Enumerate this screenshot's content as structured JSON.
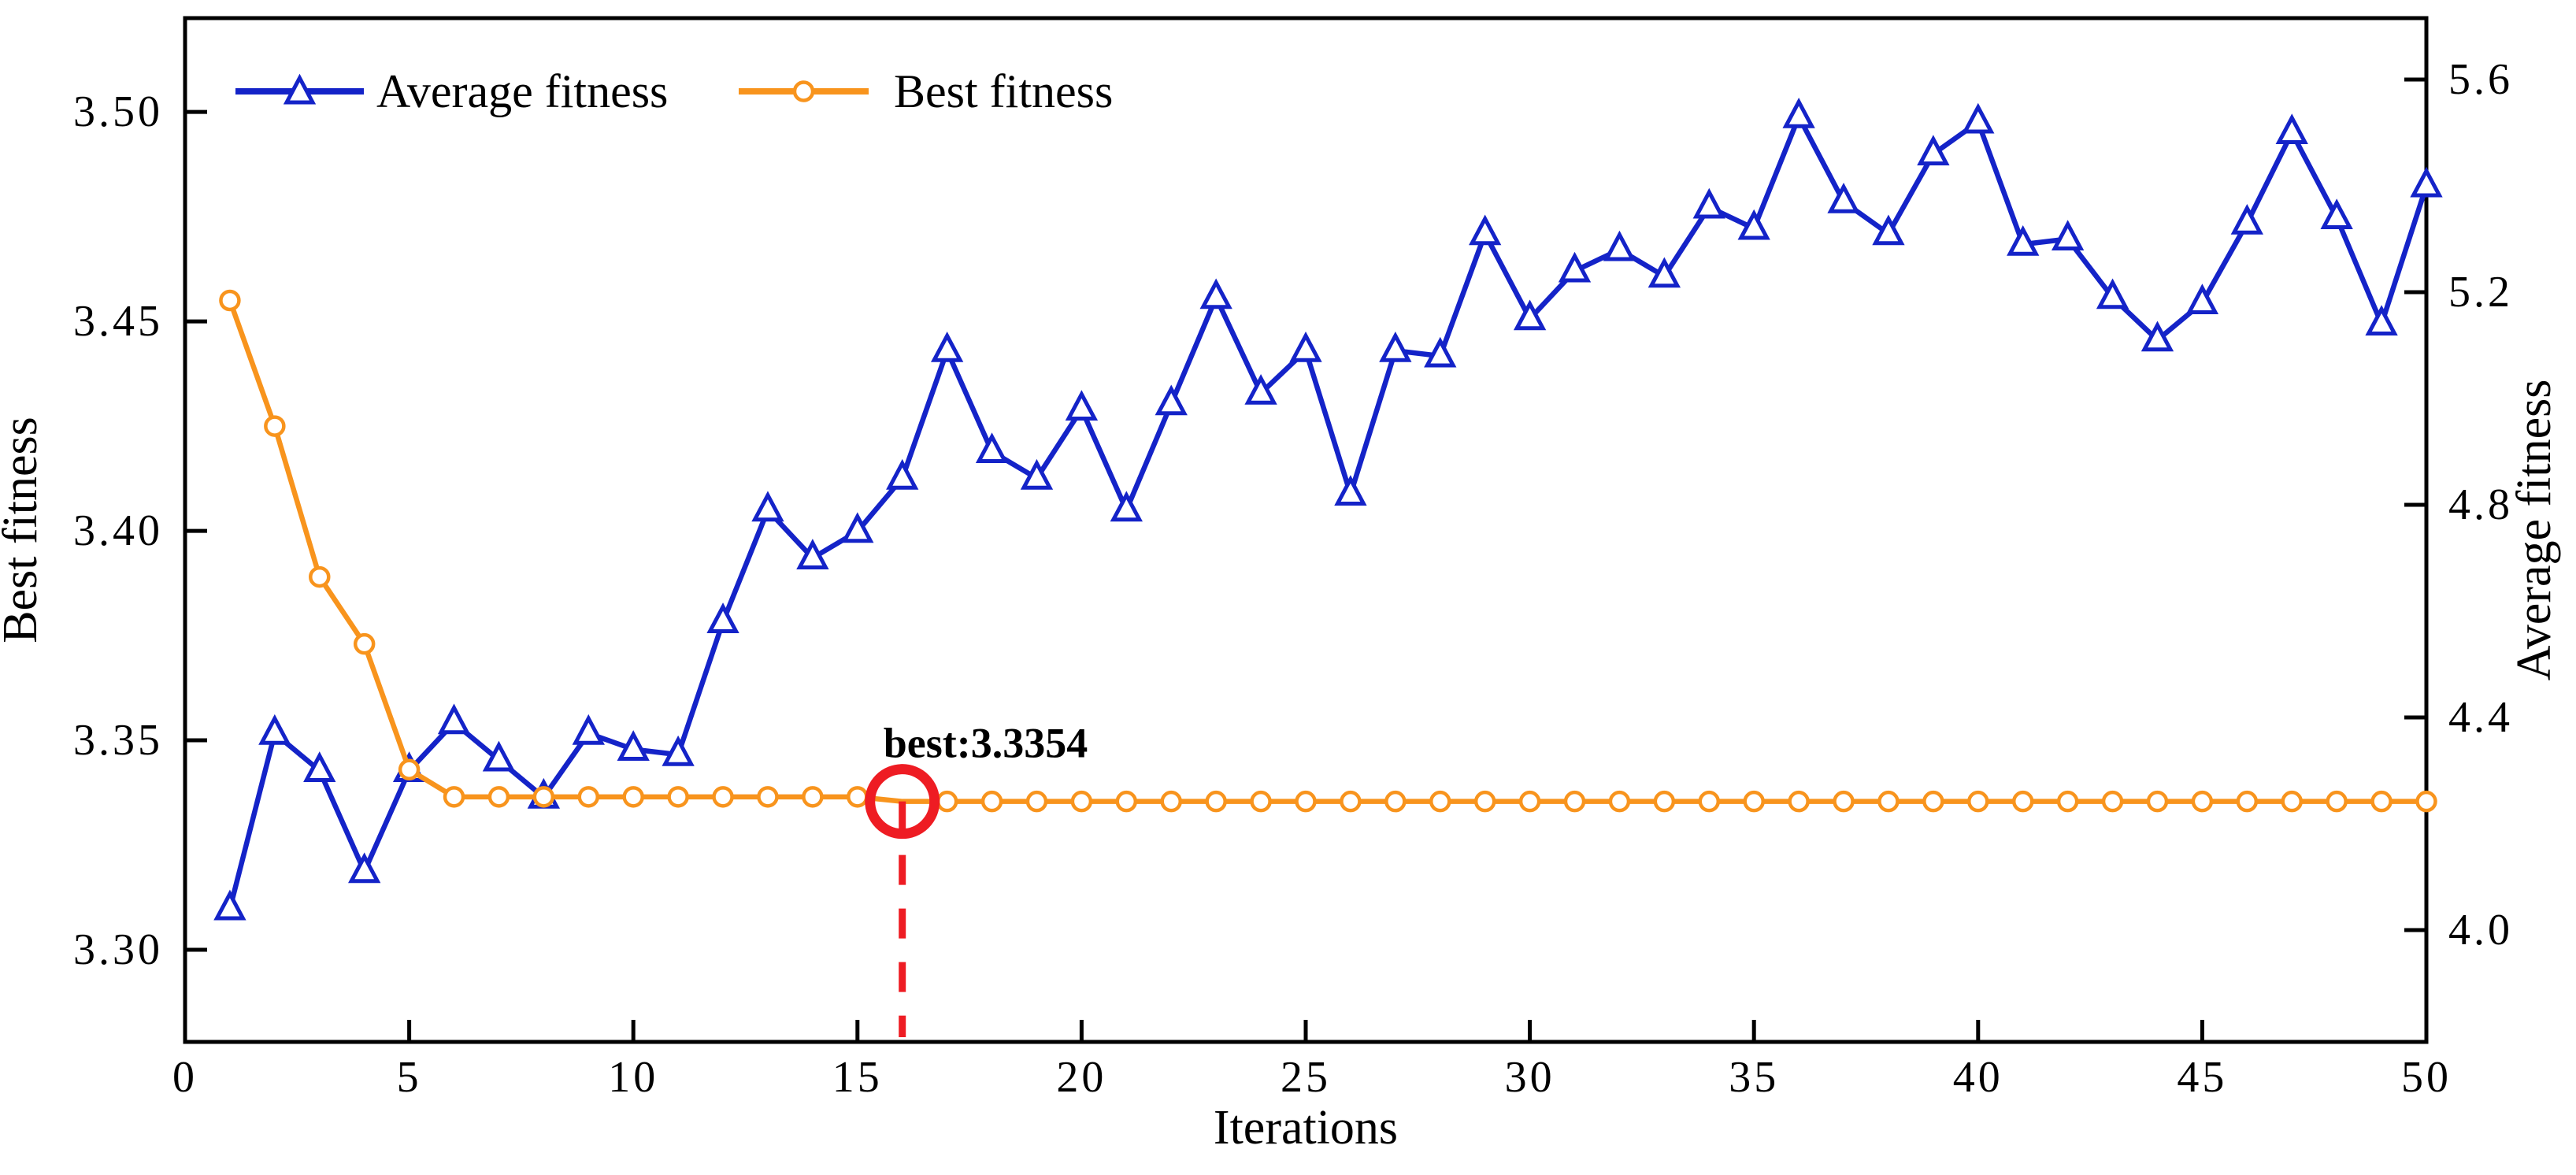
{
  "figure": {
    "background": "#ffffff",
    "axis_color": "#000000"
  },
  "chart_data": {
    "type": "line",
    "title": "",
    "xlabel": "Iterations",
    "ylabel_left": "Best fitness",
    "ylabel_right": "Average fitness",
    "grid": false,
    "legend_position": "top-left-inside",
    "xlim": [
      0,
      50
    ],
    "xticks": [
      0,
      5,
      10,
      15,
      20,
      25,
      30,
      35,
      40,
      45,
      50
    ],
    "xtick_labels": [
      "0",
      "5",
      "10",
      "15",
      "20",
      "25",
      "30",
      "35",
      "40",
      "45",
      "50"
    ],
    "left_ylim": [
      3.278,
      3.5224
    ],
    "left_yticks": [
      3.3,
      3.35,
      3.4,
      3.45,
      3.5
    ],
    "left_ytick_labels": [
      "3.30",
      "3.35",
      "3.40",
      "3.45",
      "3.50"
    ],
    "right_ylim": [
      3.7896,
      5.7156
    ],
    "right_yticks": [
      4.0,
      4.4,
      4.8,
      5.2,
      5.6
    ],
    "right_ytick_labels": [
      "4.0",
      "4.4",
      "4.8",
      "5.2",
      "5.6"
    ],
    "x": [
      1,
      2,
      3,
      4,
      5,
      6,
      7,
      8,
      9,
      10,
      11,
      12,
      13,
      14,
      15,
      16,
      17,
      18,
      19,
      20,
      21,
      22,
      23,
      24,
      25,
      26,
      27,
      28,
      29,
      30,
      31,
      32,
      33,
      34,
      35,
      36,
      37,
      38,
      39,
      40,
      41,
      42,
      43,
      44,
      45,
      46,
      47,
      48,
      49,
      50
    ],
    "series": [
      {
        "name": "Average fitness",
        "axis": "right",
        "color": "#1423c8",
        "marker": "triangle",
        "values": [
          4.04,
          4.37,
          4.3,
          4.11,
          4.3,
          4.39,
          4.32,
          4.25,
          4.37,
          4.34,
          4.33,
          4.58,
          4.79,
          4.7,
          4.75,
          4.85,
          5.09,
          4.9,
          4.85,
          4.98,
          4.79,
          4.99,
          5.19,
          5.01,
          5.09,
          4.82,
          5.09,
          5.08,
          5.31,
          5.15,
          5.24,
          5.28,
          5.23,
          5.36,
          5.32,
          5.53,
          5.37,
          5.31,
          5.46,
          5.52,
          5.29,
          5.3,
          5.19,
          5.11,
          5.18,
          5.33,
          5.5,
          5.34,
          5.14,
          5.4
        ]
      },
      {
        "name": "Best fitness",
        "axis": "left",
        "color": "#f8941d",
        "marker": "circle",
        "values": [
          3.455,
          3.425,
          3.389,
          3.373,
          3.343,
          3.3365,
          3.3365,
          3.3365,
          3.3365,
          3.3365,
          3.3365,
          3.3365,
          3.3365,
          3.3365,
          3.3365,
          3.3354,
          3.3354,
          3.3354,
          3.3354,
          3.3354,
          3.3354,
          3.3354,
          3.3354,
          3.3354,
          3.3354,
          3.3354,
          3.3354,
          3.3354,
          3.3354,
          3.3354,
          3.3354,
          3.3354,
          3.3354,
          3.3354,
          3.3354,
          3.3354,
          3.3354,
          3.3354,
          3.3354,
          3.3354,
          3.3354,
          3.3354,
          3.3354,
          3.3354,
          3.3354,
          3.3354,
          3.3354,
          3.3354,
          3.3354,
          3.3354
        ]
      }
    ],
    "annotation": {
      "text": "best:3.3354",
      "x": 16,
      "value": 3.3354,
      "color": "#ee1c23",
      "style": "red open circle on point, red dashed vertical line to x-axis"
    },
    "legend": [
      {
        "label": "Average fitness",
        "marker": "triangle",
        "color": "#1423c8"
      },
      {
        "label": "Best fitness",
        "marker": "circle",
        "color": "#f8941d"
      }
    ]
  }
}
